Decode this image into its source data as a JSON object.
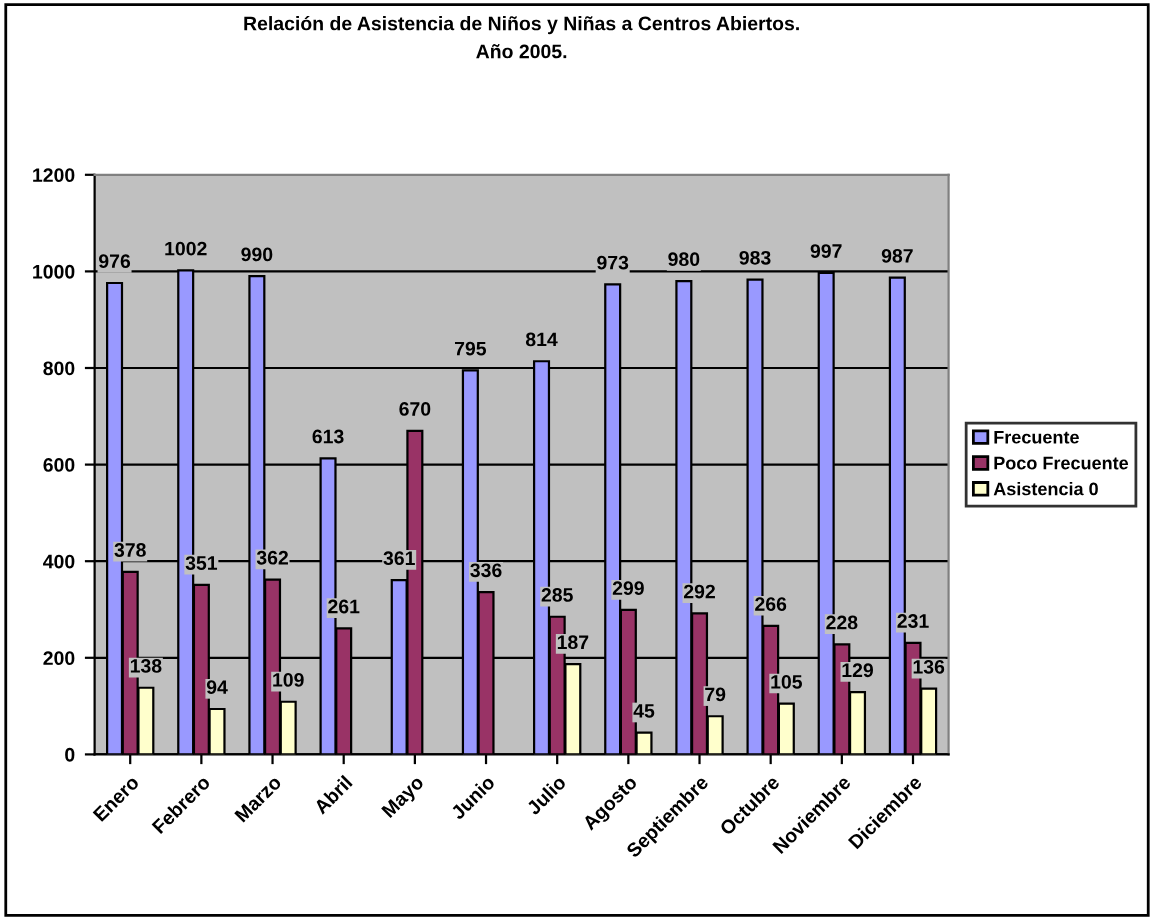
{
  "chart_data": {
    "type": "bar",
    "title": "Relación de Asistencia de Niños y Niñas a Centros Abiertos.\nAño 2005.",
    "categories": [
      "Enero",
      "Febrero",
      "Marzo",
      "Abril",
      "Mayo",
      "Junio",
      "Julio",
      "Agosto",
      "Septiembre",
      "Octubre",
      "Noviembre",
      "Diciembre"
    ],
    "series": [
      {
        "name": "Frecuente",
        "color": "#9999ff",
        "values": [
          976,
          1002,
          990,
          613,
          361,
          795,
          814,
          973,
          980,
          983,
          997,
          987
        ]
      },
      {
        "name": "Poco Frecuente",
        "color": "#993366",
        "values": [
          378,
          351,
          362,
          261,
          670,
          336,
          285,
          299,
          292,
          266,
          228,
          231
        ]
      },
      {
        "name": "Asistencia 0",
        "color": "#ffffcc",
        "values": [
          138,
          94,
          109,
          null,
          null,
          null,
          187,
          45,
          79,
          105,
          129,
          136
        ]
      }
    ],
    "ylim": [
      0,
      1200
    ],
    "yticks": [
      0,
      200,
      400,
      600,
      800,
      1000,
      1200
    ],
    "grid": "y",
    "legend": "right",
    "data_labels": true
  }
}
